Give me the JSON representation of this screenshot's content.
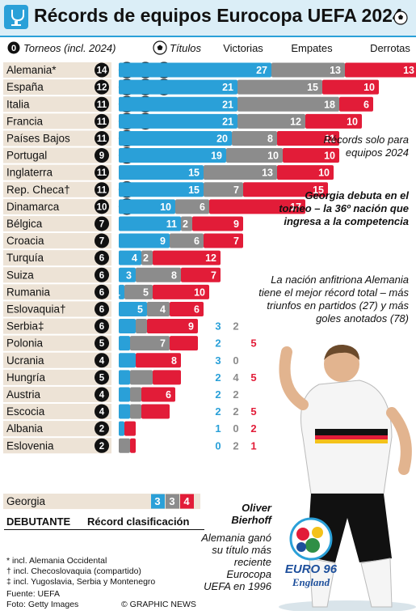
{
  "header": {
    "title": "Récords de equipos Eurocopa UEFA 2024"
  },
  "chart_data": {
    "type": "bar",
    "stacked": true,
    "title": "Récords de equipos Eurocopa UEFA 2024",
    "column_headers": {
      "tournaments": "Torneos (incl. 2024)",
      "titles": "Títulos",
      "wins": "Victorias",
      "draws": "Empates",
      "losses": "Derrotas"
    },
    "series_names": [
      "Victorias",
      "Empates",
      "Derrotas"
    ],
    "series_colors": [
      "#2aa0d8",
      "#8c8c8c",
      "#e21c38"
    ],
    "categories": [
      "Alemania*",
      "España",
      "Italia",
      "Francia",
      "Países Bajos",
      "Portugal",
      "Inglaterra",
      "Rep. Checa†",
      "Dinamarca",
      "Bélgica",
      "Croacia",
      "Turquía",
      "Suiza",
      "Rumania",
      "Eslovaquia†",
      "Serbia‡",
      "Polonia",
      "Ucrania",
      "Hungría",
      "Austria",
      "Escocia",
      "Albania",
      "Eslovenia"
    ],
    "tournaments": [
      14,
      12,
      11,
      11,
      11,
      9,
      11,
      11,
      10,
      7,
      7,
      6,
      6,
      6,
      6,
      6,
      5,
      4,
      5,
      4,
      4,
      2,
      2
    ],
    "titles": [
      3,
      3,
      2,
      2,
      1,
      1,
      0,
      1,
      1,
      0,
      0,
      0,
      0,
      0,
      0,
      0,
      0,
      0,
      0,
      0,
      0,
      0,
      0
    ],
    "wins": [
      27,
      21,
      21,
      21,
      20,
      19,
      15,
      15,
      10,
      11,
      9,
      4,
      3,
      1,
      5,
      3,
      2,
      3,
      2,
      2,
      2,
      1,
      0
    ],
    "draws": [
      13,
      15,
      18,
      12,
      8,
      10,
      13,
      7,
      6,
      2,
      6,
      2,
      8,
      5,
      4,
      2,
      7,
      0,
      4,
      2,
      2,
      0,
      2
    ],
    "losses": [
      13,
      10,
      6,
      10,
      11,
      10,
      10,
      15,
      17,
      9,
      7,
      12,
      7,
      10,
      6,
      9,
      5,
      8,
      5,
      6,
      5,
      2,
      1
    ],
    "debutant": {
      "header": "DEBUTANTE",
      "column": "Récord clasificación",
      "team": "Georgia",
      "wins": 3,
      "draws": 3,
      "losses": 4
    }
  },
  "notes": {
    "records": "Récords solo para equipos 2024",
    "georgia": "Georgia debuta en el torneo – la 36º nación que ingresa a la competencia",
    "host": "La nación anfitriona Alemania tiene el mejor récord total – más triunfos en partidos (27) y más goles anotados (78)"
  },
  "player": {
    "name": "Oliver Bierhoff",
    "caption": "Alemania ganó su título más reciente Eurocopa UEFA en 1996"
  },
  "footnotes": [
    "* incl. Alemania Occidental",
    "† incl. Checoslovaquia (compartido)",
    "‡ incl. Yugoslavia, Serbia y Montenegro"
  ],
  "credits": {
    "source": "Fuente: UEFA",
    "photo": "Foto: Getty Images",
    "copyright": "© GRAPHIC NEWS"
  },
  "logo": {
    "line1": "EURO 96",
    "line2": "England"
  },
  "colors": {
    "wins": "#2aa0d8",
    "draws": "#8c8c8c",
    "losses": "#e21c38",
    "row_band": "#ede3d6",
    "accent": "#2aa0d8"
  }
}
